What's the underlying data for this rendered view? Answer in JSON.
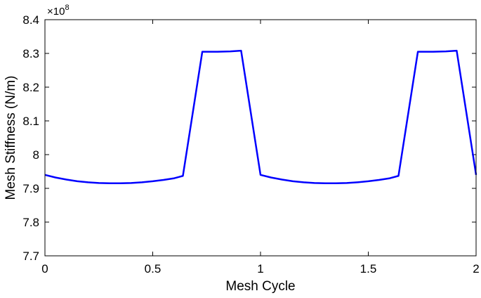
{
  "chart_data": {
    "type": "line",
    "xlabel": "Mesh Cycle",
    "ylabel": "Mesh Stiffness (N/m)",
    "y_scale_base": "×10",
    "y_scale_exponent": "8",
    "xlim": [
      0,
      2
    ],
    "ylim": [
      7.7,
      8.4
    ],
    "x_ticks": [
      "0",
      "0.5",
      "1",
      "1.5",
      "2"
    ],
    "y_ticks": [
      "7.7",
      "7.8",
      "7.9",
      "8",
      "8.1",
      "8.2",
      "8.3",
      "8.4"
    ],
    "grid": false,
    "line_color": "#0000ff",
    "series": [
      {
        "x": [
          0,
          0.05,
          0.1,
          0.15,
          0.2,
          0.25,
          0.3,
          0.35,
          0.4,
          0.45,
          0.5,
          0.55,
          0.6,
          0.64,
          0.73,
          0.8,
          0.86,
          0.91,
          1.0,
          1.05,
          1.1,
          1.15,
          1.2,
          1.25,
          1.3,
          1.35,
          1.4,
          1.45,
          1.5,
          1.55,
          1.6,
          1.64,
          1.73,
          1.8,
          1.86,
          1.91,
          2.0
        ],
        "values": [
          7.94,
          7.932,
          7.926,
          7.921,
          7.918,
          7.916,
          7.915,
          7.915,
          7.916,
          7.918,
          7.921,
          7.925,
          7.93,
          7.937,
          8.305,
          8.305,
          8.306,
          8.308,
          7.94,
          7.932,
          7.926,
          7.921,
          7.918,
          7.916,
          7.915,
          7.915,
          7.916,
          7.918,
          7.921,
          7.925,
          7.93,
          7.937,
          8.305,
          8.305,
          8.306,
          8.308,
          7.94
        ]
      }
    ]
  }
}
